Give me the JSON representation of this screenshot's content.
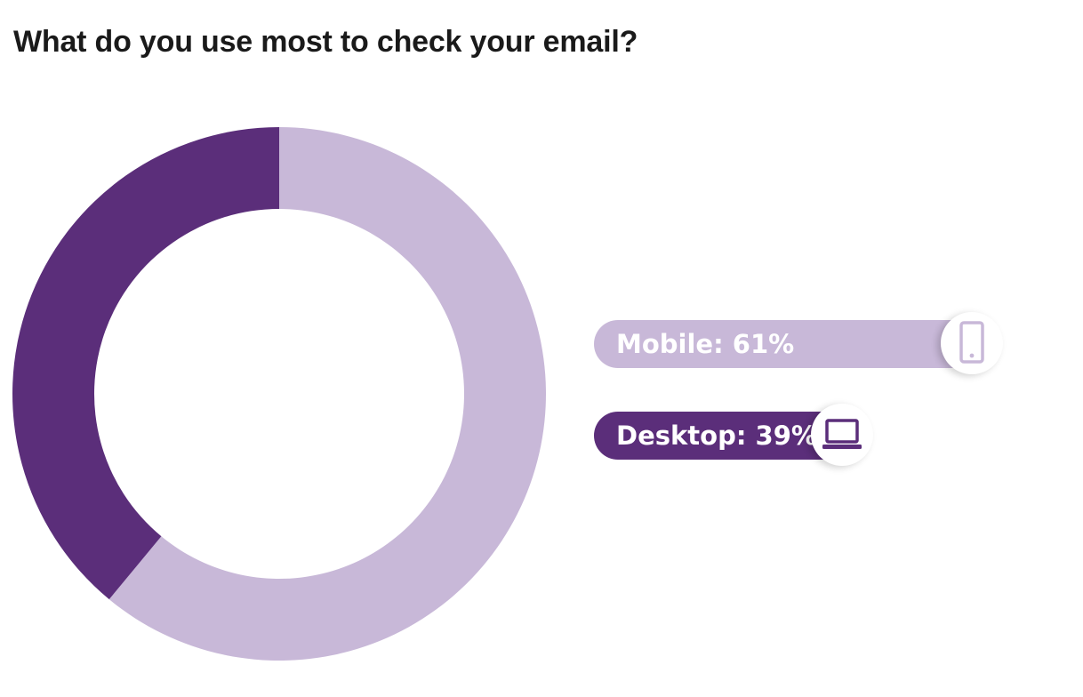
{
  "page": {
    "title": "What do you use most to check your email?"
  },
  "chart_data": {
    "type": "pie",
    "style": "donut",
    "title": "What do you use most to check your email?",
    "series": [
      {
        "name": "Mobile",
        "value": 61,
        "label": "Mobile: 61%",
        "color": "#c8b8d8",
        "icon": "mobile-phone-icon"
      },
      {
        "name": "Desktop",
        "value": 39,
        "label": "Desktop: 39%",
        "color": "#5b2e7a",
        "icon": "laptop-icon"
      }
    ],
    "legend_placement": "right"
  }
}
